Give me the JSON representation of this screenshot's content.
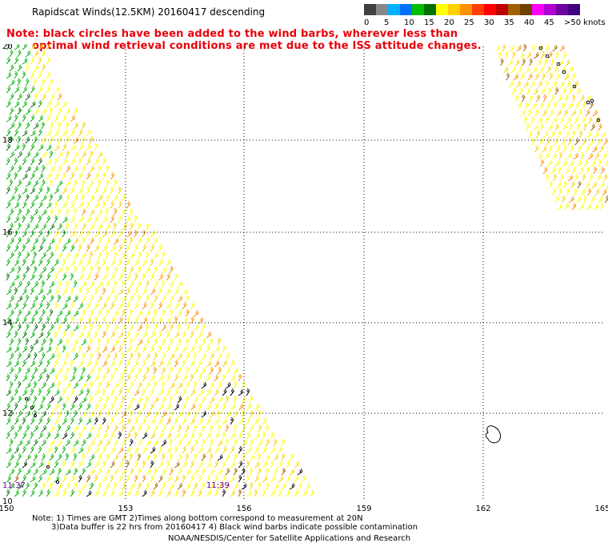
{
  "header": {
    "title": "Rapidscat Winds(12.5KM) 20160417 descending",
    "note_line1": "Note: black circles have been added to the wind barbs, wherever less than",
    "note_line2": "optimal wind retrieval conditions are met due to the ISS attitude changes."
  },
  "legend": {
    "colors": [
      "#404040",
      "#888888",
      "#00b0ff",
      "#0070ff",
      "#00c000",
      "#007000",
      "#ffff00",
      "#ffd000",
      "#ff9000",
      "#ff4000",
      "#ff0000",
      "#c00000",
      "#a06000",
      "#704000",
      "#ff00ff",
      "#b000d0",
      "#7000a0",
      "#400080"
    ],
    "labels": [
      "0",
      "5",
      "10",
      "15",
      "20",
      "25",
      "30",
      "35",
      "40",
      "45",
      ">50 knots"
    ]
  },
  "map": {
    "x_labels": [
      "150",
      "153",
      "156",
      "159",
      "162",
      "165"
    ],
    "y_labels": [
      "20",
      "18",
      "16",
      "14",
      "12",
      "10"
    ],
    "time_labels": [
      "11:37",
      "11:39"
    ]
  },
  "footer": {
    "line1": "Note: 1) Times are GMT 2)Times along bottom correspond to measurement at 20N",
    "line2": "3)Data buffer is 22 hrs from 20160417 4) Black wind barbs indicate possible contamination",
    "line3": "NOAA/NESDIS/Center for Satellite Applications and Research"
  }
}
